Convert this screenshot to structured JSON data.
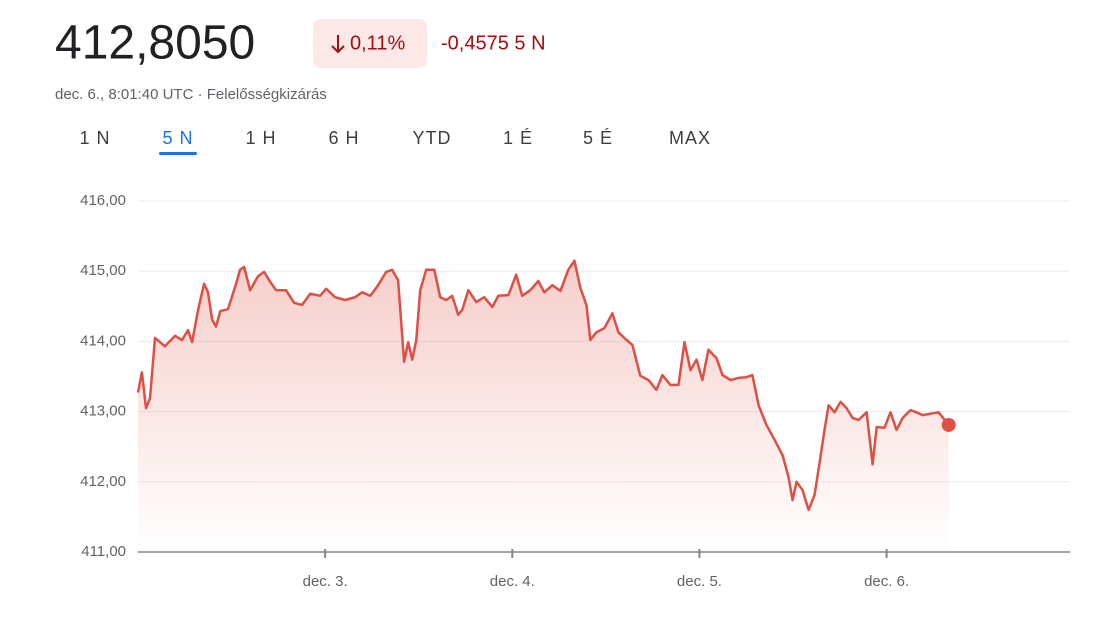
{
  "header": {
    "price": "412,8050",
    "change_percent": "0,11%",
    "change_value": "-0,4575 5 N",
    "timestamp": "dec. 6., 8:01:40 UTC · Felelősségkizárás"
  },
  "tabs": [
    "1 N",
    "5 N",
    "1 H",
    "6 H",
    "YTD",
    "1 É",
    "5 É",
    "MAX"
  ],
  "chart_data": {
    "type": "line",
    "color": "#dd5044",
    "grid": true,
    "xlim": [
      0,
      4.98
    ],
    "xticks": [
      {
        "value": 1,
        "label": "dec. 3."
      },
      {
        "value": 2,
        "label": "dec. 4."
      },
      {
        "value": 3,
        "label": "dec. 5."
      },
      {
        "value": 4,
        "label": "dec. 6."
      }
    ],
    "ylim": [
      411,
      416
    ],
    "yticks": [
      {
        "value": 411,
        "label": "411,00"
      },
      {
        "value": 412,
        "label": "412,00"
      },
      {
        "value": 413,
        "label": "413,00"
      },
      {
        "value": 414,
        "label": "414,00"
      },
      {
        "value": 415,
        "label": "415,00"
      },
      {
        "value": 416,
        "label": "416,00"
      }
    ],
    "x": [
      0,
      0.021,
      0.043,
      0.064,
      0.091,
      0.144,
      0.198,
      0.235,
      0.267,
      0.289,
      0.321,
      0.353,
      0.374,
      0.396,
      0.417,
      0.439,
      0.481,
      0.524,
      0.545,
      0.567,
      0.599,
      0.642,
      0.674,
      0.706,
      0.738,
      0.791,
      0.834,
      0.877,
      0.92,
      0.973,
      1.005,
      1.053,
      1.107,
      1.16,
      1.198,
      1.241,
      1.283,
      1.326,
      1.358,
      1.39,
      1.422,
      1.444,
      1.465,
      1.487,
      1.508,
      1.54,
      1.583,
      1.615,
      1.647,
      1.679,
      1.711,
      1.733,
      1.765,
      1.807,
      1.85,
      1.893,
      1.925,
      1.979,
      2.021,
      2.053,
      2.096,
      2.139,
      2.171,
      2.214,
      2.257,
      2.299,
      2.332,
      2.364,
      2.396,
      2.417,
      2.449,
      2.492,
      2.535,
      2.567,
      2.61,
      2.642,
      2.684,
      2.727,
      2.77,
      2.802,
      2.845,
      2.888,
      2.92,
      2.952,
      2.984,
      3.016,
      3.048,
      3.091,
      3.123,
      3.166,
      3.209,
      3.251,
      3.283,
      3.316,
      3.358,
      3.401,
      3.444,
      3.476,
      3.497,
      3.519,
      3.551,
      3.583,
      3.615,
      3.636,
      3.668,
      3.69,
      3.722,
      3.754,
      3.786,
      3.818,
      3.85,
      3.893,
      3.925,
      3.947,
      3.989,
      4.021,
      4.053,
      4.086,
      4.128,
      4.16,
      4.193,
      4.235,
      4.278,
      4.332
    ],
    "values": [
      413.27,
      413.56,
      413.05,
      413.19,
      414.05,
      413.93,
      414.08,
      414.02,
      414.16,
      413.99,
      414.45,
      414.82,
      414.7,
      414.31,
      414.21,
      414.43,
      414.46,
      414.82,
      415.02,
      415.06,
      414.73,
      414.93,
      414.99,
      414.85,
      414.73,
      414.73,
      414.55,
      414.52,
      414.68,
      414.65,
      414.75,
      414.63,
      414.59,
      414.63,
      414.7,
      414.65,
      414.8,
      414.99,
      415.02,
      414.87,
      413.71,
      413.99,
      413.74,
      414.02,
      414.73,
      415.02,
      415.02,
      414.63,
      414.59,
      414.65,
      414.38,
      414.45,
      414.73,
      414.56,
      414.63,
      414.49,
      414.65,
      414.66,
      414.95,
      414.65,
      414.73,
      414.86,
      414.7,
      414.8,
      414.72,
      415.02,
      415.15,
      414.76,
      414.52,
      414.02,
      414.13,
      414.19,
      414.4,
      414.13,
      414.02,
      413.95,
      413.51,
      413.45,
      413.31,
      413.52,
      413.38,
      413.38,
      413.99,
      413.59,
      413.74,
      413.45,
      413.88,
      413.76,
      413.52,
      413.45,
      413.48,
      413.49,
      413.52,
      413.09,
      412.81,
      412.6,
      412.38,
      412.07,
      411.74,
      412,
      411.88,
      411.6,
      411.81,
      412.17,
      412.74,
      413.09,
      412.99,
      413.14,
      413.05,
      412.91,
      412.88,
      412.99,
      412.25,
      412.78,
      412.77,
      412.99,
      412.74,
      412.91,
      413.02,
      412.99,
      412.95,
      412.97,
      412.99,
      412.81
    ]
  }
}
